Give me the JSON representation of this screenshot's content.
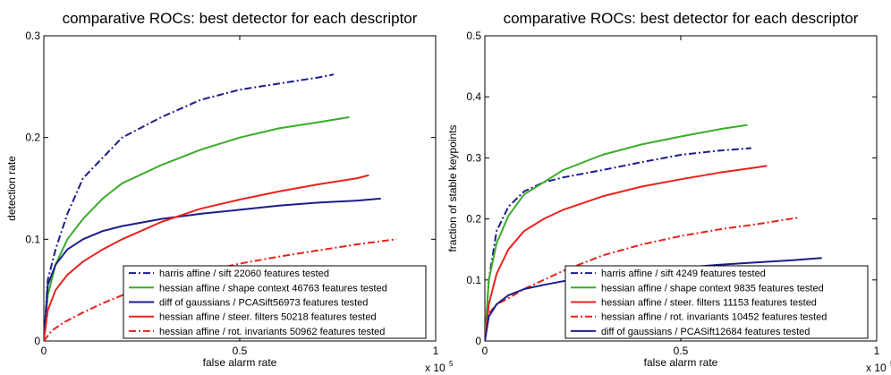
{
  "chart_data": [
    {
      "type": "line",
      "title": "comparative ROCs: best detector for each descriptor",
      "xlabel": "false alarm rate",
      "ylabel": "detection rate",
      "x_multiplier": "x 10",
      "x_multiplier_exp": "5",
      "xlim": [
        0,
        1
      ],
      "ylim": [
        0,
        0.3
      ],
      "xticks": [
        "0",
        "0.5",
        "1"
      ],
      "yticks": [
        "0",
        "0.1",
        "0.2",
        "0.3"
      ],
      "legend_position": "bottom-right",
      "grid": false,
      "series": [
        {
          "name": "harris affine / sift  22060 features tested",
          "color": "#1c1c8c",
          "dash": "dashdot",
          "x": [
            0,
            0.01,
            0.03,
            0.06,
            0.1,
            0.15,
            0.2,
            0.3,
            0.4,
            0.5,
            0.6,
            0.65,
            0.7,
            0.74
          ],
          "y": [
            0,
            0.06,
            0.09,
            0.125,
            0.16,
            0.18,
            0.2,
            0.22,
            0.237,
            0.247,
            0.253,
            0.256,
            0.259,
            0.262
          ]
        },
        {
          "name": "hessian affine / shape context 46763 features tested",
          "color": "#3aad2a",
          "dash": "solid",
          "x": [
            0,
            0.01,
            0.03,
            0.06,
            0.1,
            0.15,
            0.2,
            0.3,
            0.4,
            0.5,
            0.6,
            0.7,
            0.78
          ],
          "y": [
            0,
            0.045,
            0.075,
            0.1,
            0.12,
            0.14,
            0.155,
            0.173,
            0.188,
            0.2,
            0.209,
            0.215,
            0.22
          ]
        },
        {
          "name": "diff of gaussians / PCASift56973 features tested",
          "color": "#1c1c8c",
          "dash": "solid",
          "x": [
            0,
            0.01,
            0.03,
            0.06,
            0.1,
            0.15,
            0.2,
            0.3,
            0.4,
            0.5,
            0.6,
            0.7,
            0.8,
            0.86
          ],
          "y": [
            0,
            0.055,
            0.075,
            0.09,
            0.1,
            0.108,
            0.113,
            0.12,
            0.125,
            0.129,
            0.133,
            0.136,
            0.138,
            0.14
          ]
        },
        {
          "name": "hessian affine / steer. filters 50218 features tested",
          "color": "#e8231c",
          "dash": "solid",
          "x": [
            0,
            0.01,
            0.03,
            0.06,
            0.1,
            0.15,
            0.2,
            0.3,
            0.4,
            0.5,
            0.6,
            0.7,
            0.8,
            0.83
          ],
          "y": [
            0,
            0.03,
            0.05,
            0.065,
            0.078,
            0.09,
            0.1,
            0.117,
            0.13,
            0.139,
            0.147,
            0.154,
            0.16,
            0.163
          ]
        },
        {
          "name": "hessian affine / rot. invariants 50962 features tested",
          "color": "#e8231c",
          "dash": "dashdot",
          "x": [
            0,
            0.02,
            0.05,
            0.1,
            0.15,
            0.2,
            0.3,
            0.4,
            0.5,
            0.6,
            0.7,
            0.8,
            0.9
          ],
          "y": [
            0,
            0.01,
            0.018,
            0.028,
            0.037,
            0.045,
            0.058,
            0.068,
            0.076,
            0.083,
            0.089,
            0.095,
            0.1
          ]
        }
      ]
    },
    {
      "type": "line",
      "title": "comparative ROCs: best detector for each descriptor",
      "xlabel": "false alarm rate",
      "ylabel": "fraction of stable keypoints",
      "x_multiplier": "x 10",
      "x_multiplier_exp": "5",
      "xlim": [
        0,
        1
      ],
      "ylim": [
        0,
        0.5
      ],
      "xticks": [
        "0",
        "0.5",
        "1"
      ],
      "yticks": [
        "0",
        "0.1",
        "0.2",
        "0.3",
        "0.4",
        "0.5"
      ],
      "legend_position": "bottom-right",
      "grid": false,
      "series": [
        {
          "name": "harris affine / sift  4249 features tested",
          "color": "#1c1c8c",
          "dash": "dashdot",
          "x": [
            0,
            0.01,
            0.03,
            0.06,
            0.1,
            0.15,
            0.2,
            0.3,
            0.4,
            0.5,
            0.6,
            0.68
          ],
          "y": [
            0,
            0.1,
            0.18,
            0.22,
            0.245,
            0.26,
            0.268,
            0.28,
            0.293,
            0.305,
            0.312,
            0.316
          ]
        },
        {
          "name": "hessian affine / shape context 9835 features tested",
          "color": "#3aad2a",
          "dash": "solid",
          "x": [
            0,
            0.01,
            0.03,
            0.06,
            0.1,
            0.15,
            0.2,
            0.3,
            0.4,
            0.5,
            0.6,
            0.67
          ],
          "y": [
            0,
            0.1,
            0.16,
            0.205,
            0.24,
            0.26,
            0.28,
            0.305,
            0.322,
            0.335,
            0.347,
            0.354
          ]
        },
        {
          "name": "hessian affine / steer. filters 11153 features tested",
          "color": "#e8231c",
          "dash": "solid",
          "x": [
            0,
            0.01,
            0.03,
            0.06,
            0.1,
            0.15,
            0.2,
            0.3,
            0.4,
            0.5,
            0.6,
            0.7,
            0.72
          ],
          "y": [
            0,
            0.06,
            0.11,
            0.15,
            0.18,
            0.2,
            0.215,
            0.237,
            0.253,
            0.265,
            0.276,
            0.285,
            0.287
          ]
        },
        {
          "name": "hessian affine / rot. invariants 10452 features tested",
          "color": "#e8231c",
          "dash": "dashdot",
          "x": [
            0,
            0.01,
            0.03,
            0.06,
            0.1,
            0.15,
            0.2,
            0.3,
            0.4,
            0.5,
            0.6,
            0.7,
            0.8
          ],
          "y": [
            0,
            0.045,
            0.06,
            0.07,
            0.085,
            0.1,
            0.115,
            0.14,
            0.158,
            0.172,
            0.183,
            0.192,
            0.202
          ]
        },
        {
          "name": "diff of gaussians / PCASift12684 features tested",
          "color": "#1c1c8c",
          "dash": "solid",
          "x": [
            0,
            0.01,
            0.03,
            0.06,
            0.1,
            0.15,
            0.2,
            0.3,
            0.4,
            0.5,
            0.6,
            0.7,
            0.8,
            0.86
          ],
          "y": [
            0,
            0.04,
            0.06,
            0.075,
            0.085,
            0.092,
            0.098,
            0.107,
            0.114,
            0.12,
            0.125,
            0.129,
            0.133,
            0.136
          ]
        }
      ]
    }
  ]
}
